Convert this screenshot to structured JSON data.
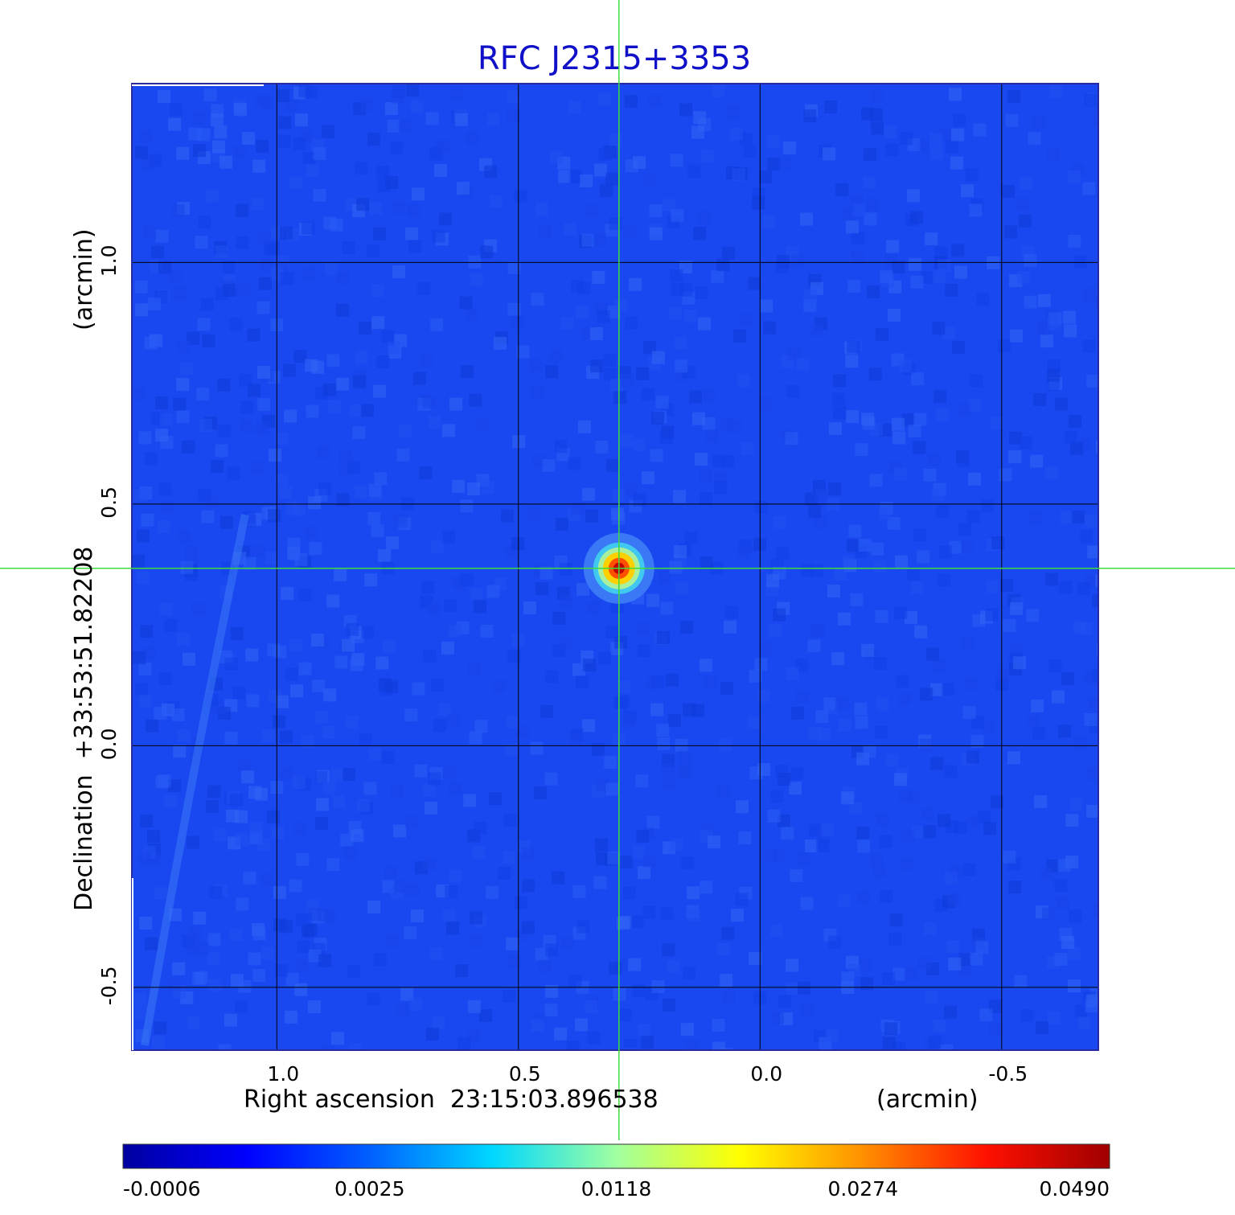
{
  "chart_data": {
    "type": "heatmap",
    "title": "RFC J2315+3353",
    "xlabel": "Right ascension  23:15:03.896538",
    "xunit": "(arcmin)",
    "ylabel": "Declination  +33:53:51.82208",
    "yunit": "(arcmin)",
    "xlim": [
      1.3,
      -0.7
    ],
    "ylim": [
      -0.63,
      1.37
    ],
    "x_ticks": [
      {
        "value": 1.0,
        "label": "1.0"
      },
      {
        "value": 0.5,
        "label": "0.5"
      },
      {
        "value": 0.0,
        "label": "0.0"
      },
      {
        "value": -0.5,
        "label": "-0.5"
      }
    ],
    "y_ticks": [
      {
        "value": 1.0,
        "label": "1.0"
      },
      {
        "value": 0.5,
        "label": "0.5"
      },
      {
        "value": 0.0,
        "label": "0.0"
      },
      {
        "value": -0.5,
        "label": "-0.5"
      }
    ],
    "grid": true,
    "crosshair": {
      "x": 0.292,
      "y": 0.367
    },
    "source": {
      "x": 0.292,
      "y": 0.367,
      "peak": 0.049
    },
    "colormap": "jet",
    "colorbar": {
      "ticks": [
        {
          "value": -0.0006,
          "label": "-0.0006"
        },
        {
          "value": 0.0025,
          "label": "0.0025"
        },
        {
          "value": 0.0118,
          "label": "0.0118"
        },
        {
          "value": 0.0274,
          "label": "0.0274"
        },
        {
          "value": 0.049,
          "label": "0.0490"
        }
      ]
    }
  },
  "colors": {
    "title": "#1010c8",
    "background_field": "#1a48f0",
    "grid": "#000000",
    "crosshair": "#3ddc3d"
  }
}
